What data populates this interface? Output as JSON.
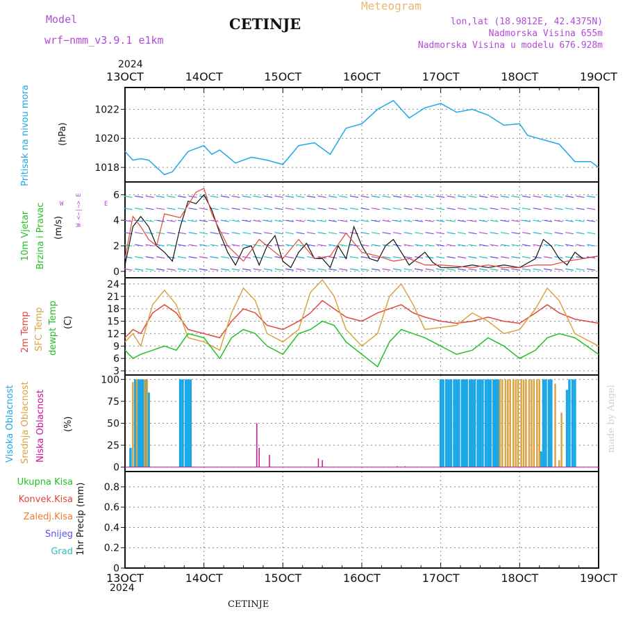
{
  "header": {
    "model_label": "Model",
    "model_name": "wrf−nmm_v3.9.1  e1km",
    "station": "CETINJE",
    "chart_kind": "Meteogram",
    "lonlat": "lon,lat (18.9812E, 42.4375N)",
    "elevation": "Nadmorska Visina 655m",
    "model_elevation": "Nadmorska Visina u modelu 676.928m"
  },
  "footer": {
    "station": "CETINJE",
    "credit": "made by Angel"
  },
  "colors": {
    "pressure": "#1aa7e8",
    "wind_speed": "#111111",
    "wind_gust": "#e0473a",
    "temp2m": "#e0473a",
    "sfc_temp": "#d9a441",
    "dewpoint": "#22c122",
    "high_cloud": "#1aa7e8",
    "mid_cloud": "#d9a441",
    "low_cloud": "#cc1199",
    "ukupna": "#22c122",
    "konvek": "#e0473a",
    "zaledj": "#f07a2a",
    "snijeg": "#5555e8",
    "grad": "#2ac4b8",
    "compass": "#b24ad8",
    "grid": "#888888"
  },
  "chart_data": [
    {
      "type": "line",
      "panel": "pressure",
      "ylabel_series": "Pritisak na nivou mora",
      "ylabel_unit": "(hPa)",
      "x_ticks": [
        "13OCT",
        "14OCT",
        "15OCT",
        "16OCT",
        "17OCT",
        "18OCT",
        "19OCT"
      ],
      "year": "2024",
      "yticks": [
        "1018",
        "1020",
        "1022"
      ],
      "ylim": [
        1017,
        1023.5
      ],
      "xlim": [
        13,
        19
      ],
      "series": [
        {
          "x": [
            13,
            13.1,
            13.2,
            13.3,
            13.5,
            13.6,
            13.8,
            14.0,
            14.1,
            14.2,
            14.4,
            14.6,
            14.8,
            15.0,
            15.2,
            15.4,
            15.6,
            15.8,
            16.0,
            16.2,
            16.4,
            16.6,
            16.8,
            17.0,
            17.2,
            17.4,
            17.6,
            17.8,
            18.0,
            18.1,
            18.3,
            18.5,
            18.7,
            18.9,
            19.0
          ],
          "y": [
            1019.1,
            1018.5,
            1018.6,
            1018.5,
            1017.5,
            1017.7,
            1019.1,
            1019.5,
            1018.9,
            1019.2,
            1018.3,
            1018.7,
            1018.5,
            1018.2,
            1019.5,
            1019.7,
            1018.9,
            1020.7,
            1021.0,
            1022.0,
            1022.6,
            1021.4,
            1022.1,
            1022.4,
            1021.8,
            1022.0,
            1021.6,
            1020.9,
            1021.0,
            1020.2,
            1019.9,
            1019.6,
            1018.4,
            1018.4,
            1018.0
          ]
        }
      ]
    },
    {
      "type": "line",
      "panel": "wind",
      "ylabel_series1": "10m Vjetar",
      "ylabel_series2": "Brzina i Pravac",
      "ylabel_unit": "(m/s)",
      "compass_top": "N",
      "compass_mid": "W  <−|−>  E",
      "compass_bottom": "S",
      "yticks": [
        "0",
        "2",
        "4",
        "6"
      ],
      "ylim": [
        -0.5,
        7
      ],
      "xlim": [
        13,
        19
      ],
      "series": [
        {
          "x": [
            13,
            13.1,
            13.2,
            13.3,
            13.4,
            13.5,
            13.6,
            13.7,
            13.8,
            13.9,
            14.0,
            14.1,
            14.2,
            14.3,
            14.4,
            14.5,
            14.6,
            14.7,
            14.8,
            14.9,
            15.0,
            15.1,
            15.2,
            15.3,
            15.4,
            15.5,
            15.6,
            15.7,
            15.8,
            15.9,
            16.0,
            16.1,
            16.2,
            16.3,
            16.4,
            16.5,
            16.6,
            16.7,
            16.8,
            16.9,
            17.0,
            17.2,
            17.4,
            17.6,
            17.8,
            18.0,
            18.2,
            18.3,
            18.4,
            18.5,
            18.6,
            18.7,
            18.8,
            19.0
          ],
          "y": [
            0.5,
            3.5,
            4.3,
            3.5,
            2.0,
            1.5,
            0.8,
            3.5,
            5.5,
            5.3,
            6.0,
            4.8,
            3.0,
            1.5,
            0.5,
            1.8,
            2.0,
            0.5,
            2.0,
            2.8,
            0.8,
            0.3,
            1.5,
            2.2,
            1.0,
            1.0,
            0.3,
            2.0,
            1.0,
            3.5,
            2.0,
            1.0,
            0.8,
            2.0,
            2.5,
            1.5,
            0.5,
            1.0,
            1.5,
            0.7,
            0.3,
            0.3,
            0.5,
            0.3,
            0.5,
            0.3,
            1.0,
            2.5,
            2.0,
            1.0,
            0.5,
            1.5,
            1.0,
            1.2
          ]
        },
        {
          "x": [
            13,
            13.1,
            13.2,
            13.3,
            13.4,
            13.5,
            13.7,
            13.9,
            14.0,
            14.1,
            14.3,
            14.5,
            14.7,
            14.9,
            15.0,
            15.2,
            15.4,
            15.6,
            15.8,
            16.0,
            16.2,
            16.4,
            16.6,
            16.8,
            17.0,
            17.2,
            17.4,
            17.6,
            17.8,
            18.0,
            18.2,
            18.4,
            18.6,
            18.8,
            19.0
          ],
          "y": [
            1.0,
            4.3,
            3.5,
            2.5,
            2.0,
            4.5,
            4.2,
            6.2,
            6.5,
            4.5,
            2.0,
            0.8,
            2.5,
            1.5,
            1.0,
            2.5,
            1.0,
            1.2,
            3.0,
            1.5,
            1.2,
            0.8,
            1.0,
            0.5,
            0.5,
            0.4,
            0.3,
            0.5,
            0.3,
            0.3,
            0.5,
            0.5,
            0.8,
            1.0,
            1.2
          ]
        }
      ]
    },
    {
      "type": "line",
      "panel": "temperature",
      "ylabel_series1": "2m Temp",
      "ylabel_series2": "SFC Temp",
      "ylabel_series3": "dewpt Temp",
      "ylabel_unit": "(C)",
      "yticks": [
        "3",
        "6",
        "9",
        "12",
        "15",
        "18",
        "21",
        "24"
      ],
      "ylim": [
        2,
        25.5
      ],
      "xlim": [
        13,
        19
      ],
      "series": [
        {
          "name": "2m Temp",
          "x": [
            13,
            13.1,
            13.2,
            13.35,
            13.5,
            13.65,
            13.8,
            14.0,
            14.2,
            14.35,
            14.5,
            14.65,
            14.8,
            15.0,
            15.2,
            15.35,
            15.5,
            15.65,
            15.8,
            16.0,
            16.2,
            16.35,
            16.5,
            16.65,
            16.8,
            17.0,
            17.2,
            17.4,
            17.6,
            17.8,
            18.0,
            18.2,
            18.35,
            18.5,
            18.7,
            19.0
          ],
          "y": [
            11,
            13,
            12,
            17,
            19,
            17,
            13,
            12,
            11,
            15,
            18,
            17,
            14,
            13,
            15,
            17,
            20,
            18,
            16,
            15,
            17,
            18,
            19,
            17,
            16,
            15,
            14.5,
            15,
            16,
            15,
            14.5,
            17,
            19,
            17,
            15.5,
            14.5
          ]
        },
        {
          "name": "SFC Temp",
          "x": [
            13,
            13.1,
            13.2,
            13.35,
            13.5,
            13.65,
            13.8,
            14.0,
            14.2,
            14.35,
            14.5,
            14.65,
            14.8,
            15.0,
            15.2,
            15.35,
            15.5,
            15.65,
            15.8,
            16.0,
            16.2,
            16.35,
            16.5,
            16.65,
            16.8,
            17.0,
            17.2,
            17.4,
            17.6,
            17.8,
            18.0,
            18.2,
            18.35,
            18.5,
            18.7,
            19.0
          ],
          "y": [
            10,
            12,
            9,
            19,
            22.5,
            19,
            11,
            10,
            8,
            17,
            23,
            20,
            12,
            10,
            13,
            22,
            25,
            21,
            13,
            9,
            12,
            21,
            24,
            19,
            13,
            13.5,
            14,
            17,
            15,
            12,
            13,
            18,
            23,
            20,
            12,
            9
          ]
        },
        {
          "name": "dewpt Temp",
          "x": [
            13,
            13.1,
            13.2,
            13.35,
            13.5,
            13.65,
            13.8,
            14.0,
            14.2,
            14.35,
            14.5,
            14.65,
            14.8,
            15.0,
            15.2,
            15.35,
            15.5,
            15.65,
            15.8,
            16.0,
            16.2,
            16.35,
            16.5,
            16.65,
            16.8,
            17.0,
            17.2,
            17.4,
            17.6,
            17.8,
            18.0,
            18.2,
            18.35,
            18.5,
            18.7,
            19.0
          ],
          "y": [
            8,
            6,
            7,
            8,
            9,
            8,
            12,
            11,
            6,
            11,
            13,
            12,
            9,
            7,
            12,
            13,
            15,
            14,
            10,
            7,
            4,
            10,
            13,
            12,
            11,
            9,
            7,
            8,
            11,
            9,
            6,
            8,
            11,
            12,
            11,
            7
          ]
        }
      ]
    },
    {
      "type": "bar",
      "panel": "cloud",
      "ylabel_series1": "Visoka Oblacnost",
      "ylabel_series2": "Srednja Oblacnost",
      "ylabel_series3": "Niska Oblacnost",
      "ylabel_unit": "(%)",
      "yticks": [
        "0",
        "25",
        "50",
        "75",
        "100"
      ],
      "ylim": [
        -5,
        105
      ],
      "xlim": [
        13,
        19
      ],
      "series": [
        {
          "name": "Visoka Oblacnost",
          "x": [
            13.07,
            13.13,
            13.17,
            13.2,
            13.23,
            13.27,
            13.3,
            13.7,
            13.73,
            13.77,
            13.8,
            13.83,
            17.0,
            17.03,
            17.07,
            17.1,
            17.13,
            17.17,
            17.2,
            17.23,
            17.27,
            17.3,
            17.33,
            17.37,
            17.4,
            17.43,
            17.47,
            17.5,
            17.53,
            17.57,
            17.6,
            17.63,
            17.67,
            17.7,
            17.73,
            18.27,
            18.3,
            18.33,
            18.37,
            18.4,
            18.6,
            18.63,
            18.67,
            18.7
          ],
          "values": [
            22,
            100,
            100,
            100,
            100,
            100,
            85,
            100,
            100,
            100,
            100,
            100,
            100,
            100,
            100,
            100,
            100,
            100,
            100,
            100,
            100,
            100,
            100,
            100,
            100,
            100,
            100,
            100,
            100,
            100,
            100,
            100,
            100,
            100,
            100,
            18,
            100,
            100,
            100,
            100,
            88,
            100,
            100,
            100
          ]
        },
        {
          "name": "Srednja Oblacnost",
          "x": [
            13.1,
            13.15,
            13.25,
            13.28,
            17.75,
            17.78,
            17.82,
            17.85,
            17.88,
            17.92,
            17.95,
            17.98,
            18.02,
            18.05,
            18.08,
            18.12,
            18.15,
            18.18,
            18.22,
            18.25,
            18.45,
            18.5,
            18.53
          ],
          "values": [
            97,
            100,
            100,
            100,
            100,
            100,
            100,
            100,
            100,
            100,
            100,
            100,
            100,
            100,
            100,
            100,
            100,
            100,
            100,
            100,
            95,
            8,
            62
          ]
        },
        {
          "name": "Niska Oblacnost",
          "x": [
            14.67,
            14.7,
            14.83,
            15.45,
            15.5,
            16.45,
            16.55
          ],
          "values": [
            50,
            22,
            14,
            10,
            8,
            1,
            1
          ]
        }
      ]
    },
    {
      "type": "bar",
      "panel": "precip",
      "ylabel_series1": "Ukupna  Kisa",
      "ylabel_series2": "Konvek.Kisa",
      "ylabel_series3": "Zaledj.Kisa",
      "ylabel_series4": "Snijeg",
      "ylabel_series5": "Grad",
      "ylabel_unit": "1hr Precip (mm)",
      "yticks": [
        "0",
        "0.2",
        "0.4",
        "0.6",
        "0.8"
      ],
      "ylim": [
        0,
        0.95
      ],
      "xlim": [
        13,
        19
      ],
      "series": []
    }
  ]
}
